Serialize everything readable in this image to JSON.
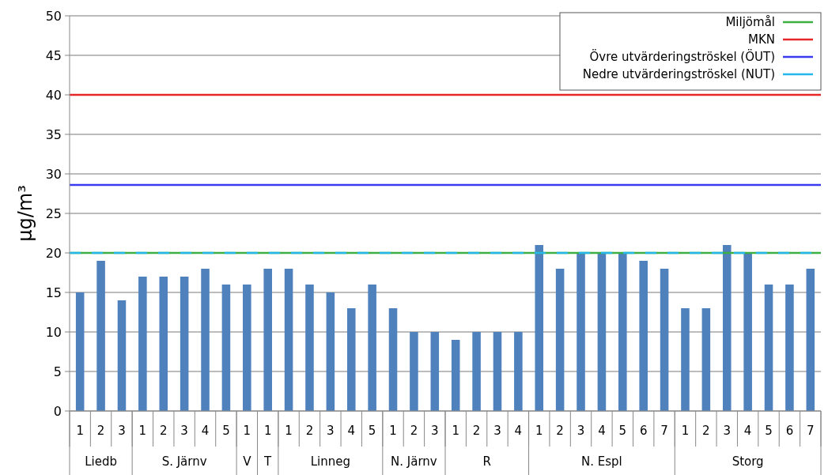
{
  "chart_data": {
    "type": "bar",
    "ylabel": "μg/m³",
    "categories": [
      "1",
      "2",
      "3",
      "1",
      "2",
      "3",
      "4",
      "5",
      "1",
      "1",
      "1",
      "2",
      "3",
      "4",
      "5",
      "1",
      "2",
      "3",
      "1",
      "2",
      "3",
      "4",
      "1",
      "2",
      "3",
      "4",
      "5",
      "6",
      "7",
      "1",
      "2",
      "3",
      "4",
      "5",
      "6",
      "7"
    ],
    "values": [
      15,
      19,
      14,
      17,
      17,
      17,
      18,
      16,
      16,
      18,
      18,
      16,
      15,
      13,
      16,
      13,
      10,
      10,
      9,
      10,
      10,
      10,
      21,
      18,
      20,
      20,
      20,
      19,
      18,
      13,
      13,
      21,
      20,
      16,
      16,
      18
    ],
    "color": "#4f81bd",
    "annotations": [
      "Liedb",
      "S. Järnv",
      "V",
      "T",
      "Linneg",
      "N. Järnv",
      "R",
      "N. Espl",
      "Storg"
    ],
    "ylim": [
      0,
      50
    ],
    "yticks": [
      0,
      5,
      10,
      15,
      20,
      25,
      30,
      35,
      40,
      45,
      50
    ],
    "grid": "y",
    "legend": "top right",
    "ref_lines": [
      {
        "axis": "y",
        "value": 20,
        "label": "Miljömål",
        "color": "#3cb043"
      },
      {
        "axis": "y",
        "value": 40,
        "label": "MKN",
        "color": "#e8262a"
      },
      {
        "axis": "y",
        "value": 28.6,
        "label": "Övre utvärderingströskel (ÖUT)",
        "color": "#3a3af0"
      },
      {
        "axis": "y",
        "value": 20,
        "label": "Nedre utvärderingströskel (NUT)",
        "color": "#26b8ea",
        "line_style": "dashed"
      }
    ]
  }
}
